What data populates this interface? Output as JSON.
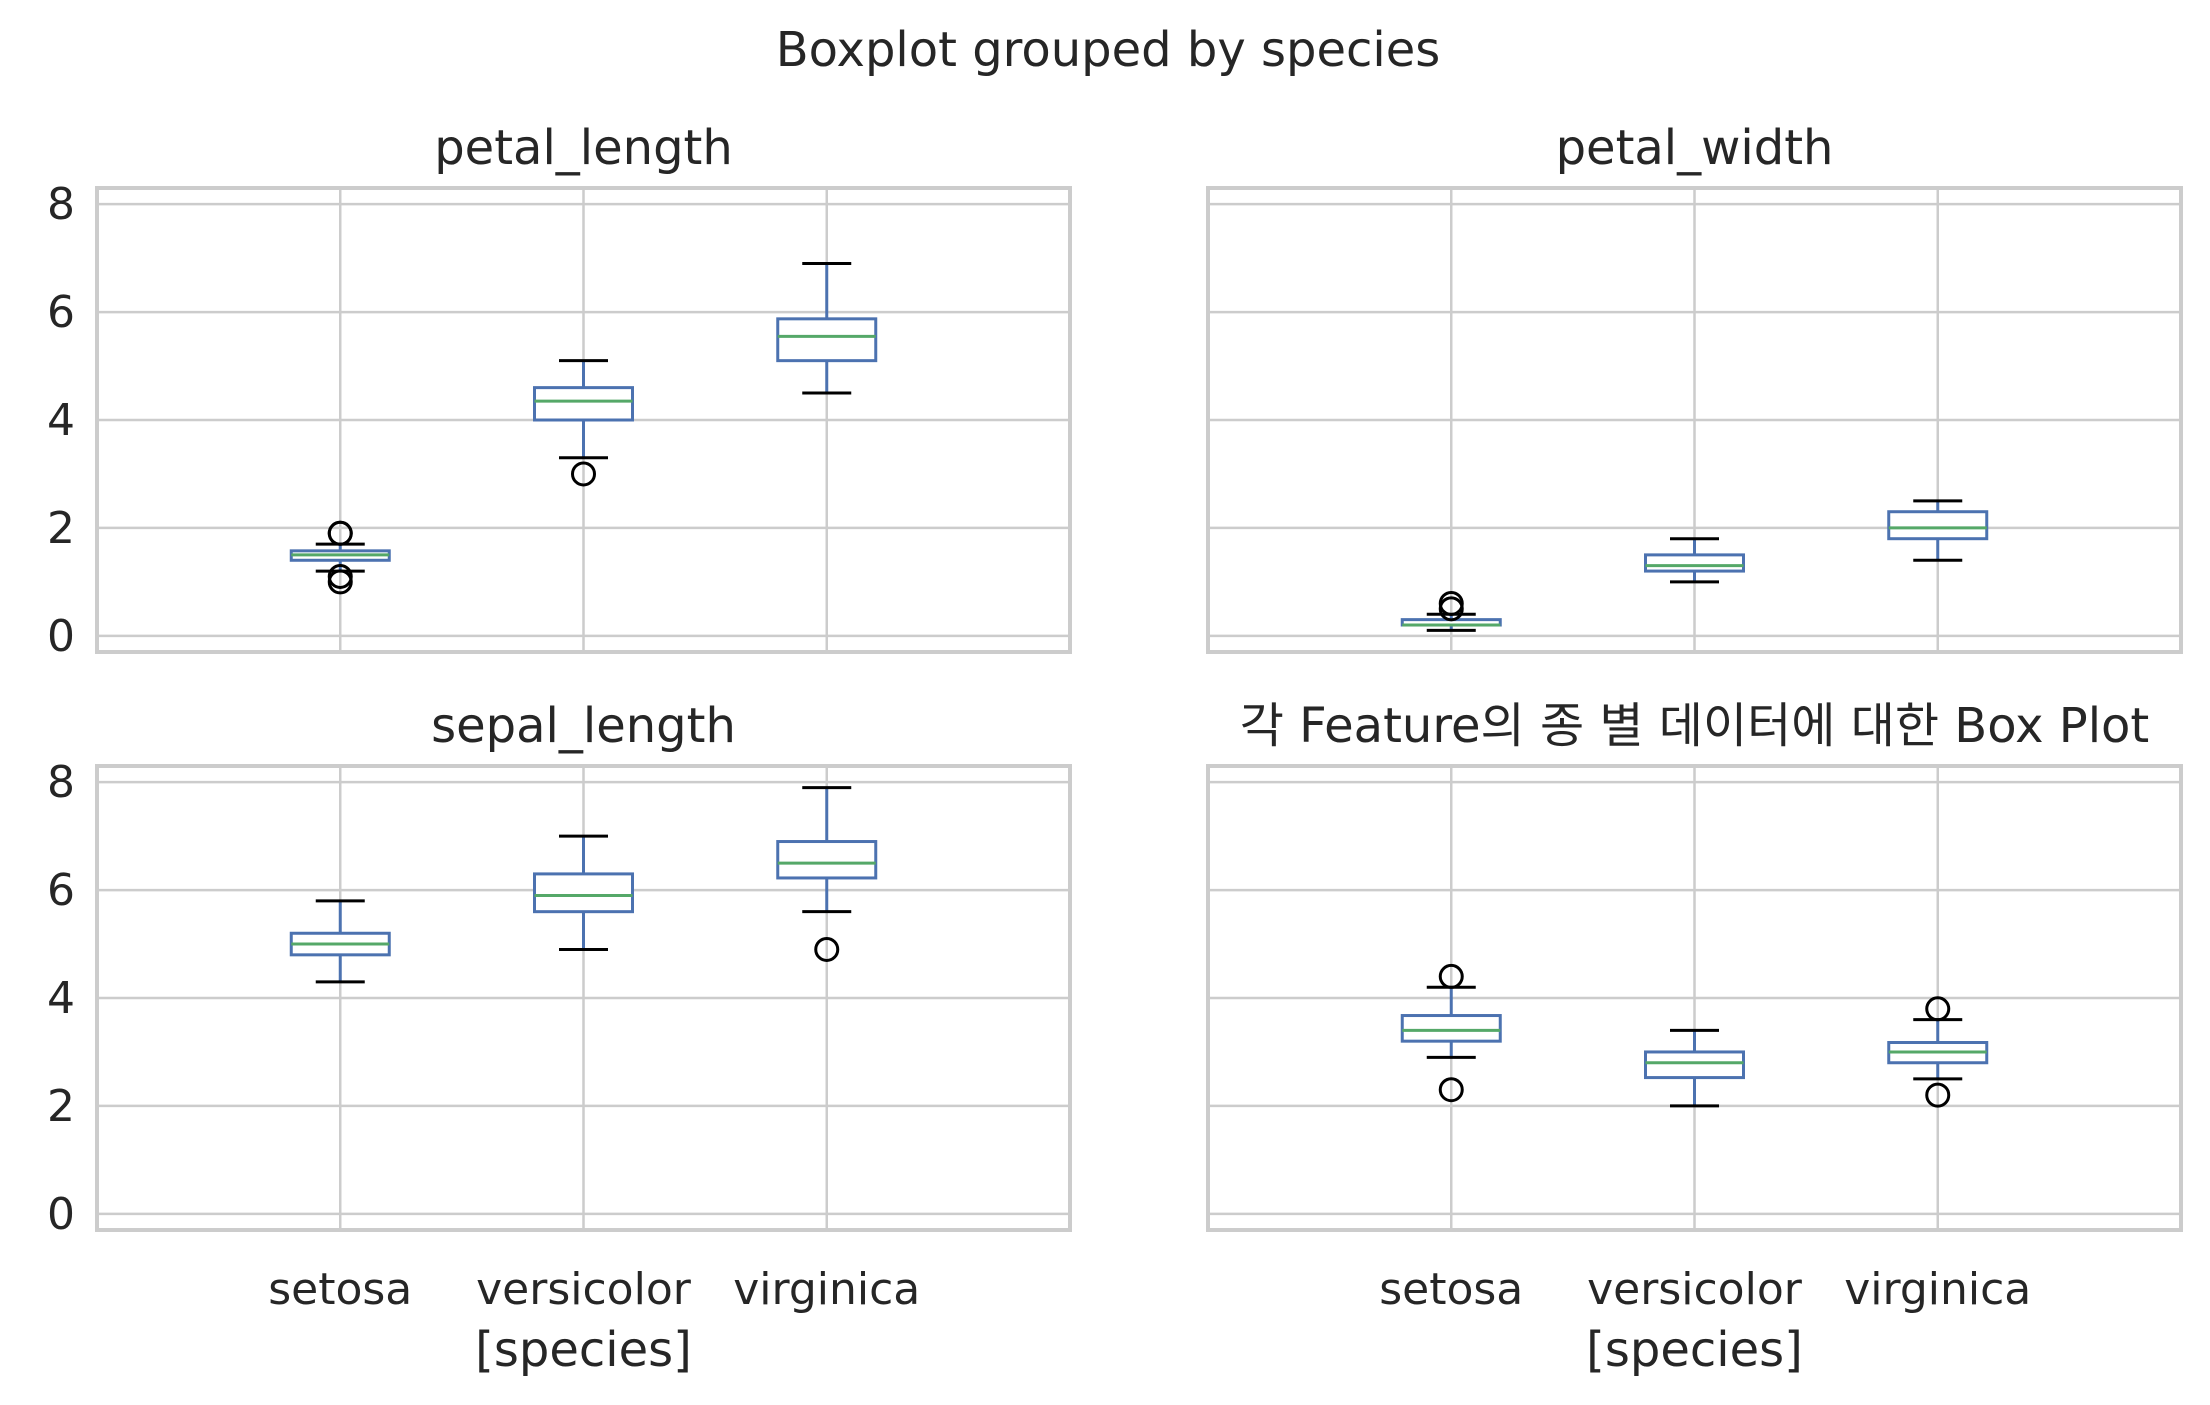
{
  "suptitle": "Boxplot grouped by species",
  "colors": {
    "box": "#4C72B0",
    "median": "#55A868",
    "grid": "#cccccc",
    "frame": "#cccccc",
    "flier": "#000000",
    "text": "#262626"
  },
  "chart_data": [
    {
      "type": "boxplot",
      "title": "petal_length",
      "categories": [
        "setosa",
        "versicolor",
        "virginica"
      ],
      "ylim": [
        -0.3,
        8.3
      ],
      "yticks": [
        0,
        2,
        4,
        6,
        8
      ],
      "grid": true,
      "show_xticklabels": false,
      "show_yticklabels": true,
      "xlabel": "",
      "boxes": [
        {
          "category": "setosa",
          "whislo": 1.2,
          "q1": 1.4,
          "med": 1.5,
          "q3": 1.575,
          "whishi": 1.7,
          "fliers": [
            1.0,
            1.1,
            1.9,
            1.9
          ]
        },
        {
          "category": "versicolor",
          "whislo": 3.3,
          "q1": 4.0,
          "med": 4.35,
          "q3": 4.6,
          "whishi": 5.1,
          "fliers": [
            3.0
          ]
        },
        {
          "category": "virginica",
          "whislo": 4.5,
          "q1": 5.1,
          "med": 5.55,
          "q3": 5.875,
          "whishi": 6.9,
          "fliers": []
        }
      ]
    },
    {
      "type": "boxplot",
      "title": "petal_width",
      "categories": [
        "setosa",
        "versicolor",
        "virginica"
      ],
      "ylim": [
        -0.3,
        8.3
      ],
      "yticks": [
        0,
        2,
        4,
        6,
        8
      ],
      "grid": true,
      "show_xticklabels": false,
      "show_yticklabels": false,
      "xlabel": "",
      "boxes": [
        {
          "category": "setosa",
          "whislo": 0.1,
          "q1": 0.2,
          "med": 0.2,
          "q3": 0.3,
          "whishi": 0.4,
          "fliers": [
            0.5,
            0.6
          ]
        },
        {
          "category": "versicolor",
          "whislo": 1.0,
          "q1": 1.2,
          "med": 1.3,
          "q3": 1.5,
          "whishi": 1.8,
          "fliers": []
        },
        {
          "category": "virginica",
          "whislo": 1.4,
          "q1": 1.8,
          "med": 2.0,
          "q3": 2.3,
          "whishi": 2.5,
          "fliers": []
        }
      ]
    },
    {
      "type": "boxplot",
      "title": "sepal_length",
      "categories": [
        "setosa",
        "versicolor",
        "virginica"
      ],
      "ylim": [
        -0.3,
        8.3
      ],
      "yticks": [
        0,
        2,
        4,
        6,
        8
      ],
      "grid": true,
      "show_xticklabels": true,
      "show_yticklabels": true,
      "xlabel": "[species]",
      "boxes": [
        {
          "category": "setosa",
          "whislo": 4.3,
          "q1": 4.8,
          "med": 5.0,
          "q3": 5.2,
          "whishi": 5.8,
          "fliers": []
        },
        {
          "category": "versicolor",
          "whislo": 4.9,
          "q1": 5.6,
          "med": 5.9,
          "q3": 6.3,
          "whishi": 7.0,
          "fliers": []
        },
        {
          "category": "virginica",
          "whislo": 5.6,
          "q1": 6.225,
          "med": 6.5,
          "q3": 6.9,
          "whishi": 7.9,
          "fliers": [
            4.9
          ]
        }
      ]
    },
    {
      "type": "boxplot",
      "title": "각 Feature의 종 별 데이터에 대한 Box Plot",
      "categories": [
        "setosa",
        "versicolor",
        "virginica"
      ],
      "ylim": [
        -0.3,
        8.3
      ],
      "yticks": [
        0,
        2,
        4,
        6,
        8
      ],
      "grid": true,
      "show_xticklabels": true,
      "show_yticklabels": false,
      "xlabel": "[species]",
      "boxes": [
        {
          "category": "setosa",
          "whislo": 2.9,
          "q1": 3.2,
          "med": 3.4,
          "q3": 3.675,
          "whishi": 4.2,
          "fliers": [
            2.3,
            4.4
          ]
        },
        {
          "category": "versicolor",
          "whislo": 2.0,
          "q1": 2.525,
          "med": 2.8,
          "q3": 3.0,
          "whishi": 3.4,
          "fliers": []
        },
        {
          "category": "virginica",
          "whislo": 2.5,
          "q1": 2.8,
          "med": 3.0,
          "q3": 3.175,
          "whishi": 3.6,
          "fliers": [
            2.2,
            3.8
          ]
        }
      ]
    }
  ]
}
